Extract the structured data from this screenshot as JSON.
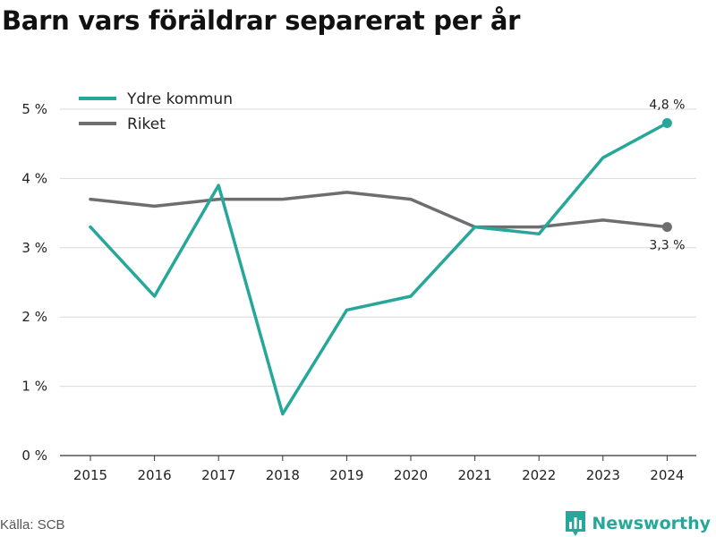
{
  "title": "Barn vars föräldrar separerat per år",
  "source": "Källa: SCB",
  "brand": {
    "name": "Newsworthy",
    "icon": "bar-chart-logo-icon",
    "color": "#27a79a"
  },
  "chart_data": {
    "type": "line",
    "title": "Barn vars föräldrar separerat per år",
    "xlabel": "",
    "ylabel": "",
    "x": [
      "2015",
      "2016",
      "2017",
      "2018",
      "2019",
      "2020",
      "2021",
      "2022",
      "2023",
      "2024"
    ],
    "ylim": [
      0,
      5
    ],
    "yticks": [
      0,
      1,
      2,
      3,
      4,
      5
    ],
    "ytick_labels": [
      "0 %",
      "1 %",
      "2 %",
      "3 %",
      "4 %",
      "5 %"
    ],
    "grid": true,
    "legend": "top-left",
    "series": [
      {
        "name": "Ydre kommun",
        "color": "#27a79a",
        "values": [
          3.3,
          2.3,
          3.9,
          0.6,
          2.1,
          2.3,
          3.3,
          3.2,
          4.3,
          4.8
        ],
        "end_label": "4,8 %"
      },
      {
        "name": "Riket",
        "color": "#6e6e70",
        "values": [
          3.7,
          3.6,
          3.7,
          3.7,
          3.8,
          3.7,
          3.3,
          3.3,
          3.4,
          3.3
        ],
        "end_label": "3,3 %"
      }
    ]
  }
}
